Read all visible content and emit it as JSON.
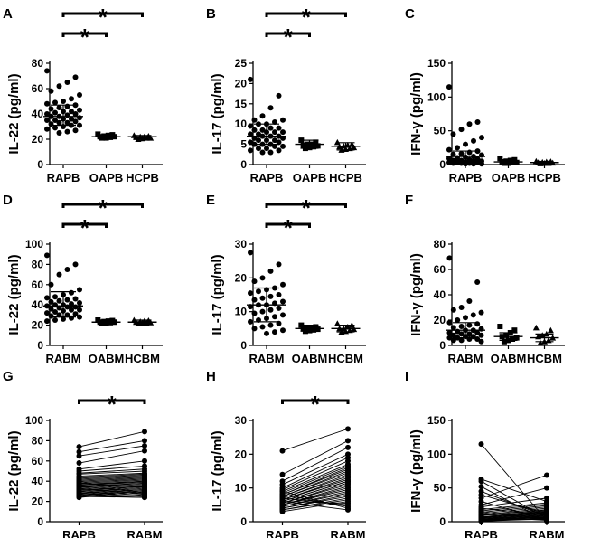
{
  "chart_data": [
    {
      "panel": "A",
      "type": "scatter",
      "ylabel": "IL-22 (pg/ml)",
      "ylim": [
        0,
        80
      ],
      "yticks": [
        0,
        20,
        40,
        60,
        80
      ],
      "categories": [
        "RAPB",
        "OAPB",
        "HCPB"
      ],
      "markers": [
        "circle",
        "square",
        "triangle"
      ],
      "means": [
        38,
        22,
        22
      ],
      "sd": [
        [
          31,
          47
        ],
        [
          21,
          23.5
        ],
        [
          20.5,
          23
        ]
      ],
      "points": [
        [
          74,
          69,
          65,
          62,
          58,
          55,
          52,
          50,
          49,
          48,
          47,
          46,
          45,
          44,
          43,
          42,
          42,
          41,
          40,
          40,
          39,
          38,
          38,
          37,
          36,
          36,
          35,
          35,
          34,
          33,
          33,
          32,
          31,
          31,
          30,
          29,
          28,
          27,
          26,
          25
        ],
        [
          24,
          23.5,
          23,
          22.5,
          22,
          22,
          21.5,
          21,
          21
        ],
        [
          23,
          22.5,
          22,
          22,
          21.5,
          21,
          21,
          20.5,
          20
        ]
      ],
      "sig": [
        {
          "from": 0,
          "to": 1,
          "label": "*"
        },
        {
          "from": 0,
          "to": 2,
          "label": "*"
        }
      ]
    },
    {
      "panel": "B",
      "type": "scatter",
      "ylabel": "IL-17 (pg/ml)",
      "ylim": [
        0,
        25
      ],
      "yticks": [
        0,
        5,
        10,
        15,
        20,
        25
      ],
      "categories": [
        "RAPB",
        "OAPB",
        "HCPB"
      ],
      "markers": [
        "circle",
        "square",
        "triangle"
      ],
      "means": [
        7,
        5,
        4.5
      ],
      "sd": [
        [
          5,
          10
        ],
        [
          4,
          6
        ],
        [
          3.6,
          5.4
        ]
      ],
      "points": [
        [
          21,
          17,
          14,
          12,
          11,
          11,
          10.5,
          10,
          10,
          9.5,
          9,
          9,
          8.5,
          8.5,
          8,
          8,
          8,
          7.5,
          7.5,
          7,
          7,
          7,
          6.5,
          6.5,
          6,
          6,
          6,
          5.5,
          5.5,
          5,
          5,
          5,
          4.5,
          4.5,
          4,
          4,
          3.5,
          3.5,
          3,
          3
        ],
        [
          6,
          5.5,
          5,
          5,
          4.8,
          4.6,
          4.4,
          4.2,
          4
        ],
        [
          5.5,
          5,
          4.8,
          4.6,
          4.4,
          4.2,
          4,
          3.8,
          3.6
        ]
      ],
      "sig": [
        {
          "from": 0,
          "to": 1,
          "label": "*"
        },
        {
          "from": 0,
          "to": 2,
          "label": "*"
        }
      ]
    },
    {
      "panel": "C",
      "type": "scatter",
      "ylabel": "IFN-γ (pg/ml)",
      "ylim": [
        0,
        150
      ],
      "yticks": [
        0,
        50,
        100,
        150
      ],
      "categories": [
        "RAPB",
        "OAPB",
        "HCPB"
      ],
      "markers": [
        "circle",
        "square",
        "triangle"
      ],
      "means": [
        12,
        4,
        3
      ],
      "sd": [
        [
          2,
          20
        ],
        [
          2,
          6
        ],
        [
          1.5,
          4.5
        ]
      ],
      "points": [
        [
          115,
          63,
          60,
          52,
          45,
          40,
          35,
          30,
          25,
          22,
          20,
          18,
          16,
          15,
          14,
          12,
          11,
          10,
          9,
          8,
          7,
          6,
          6,
          5,
          5,
          4,
          4,
          3,
          3,
          2,
          2,
          2,
          1,
          1,
          1
        ],
        [
          9,
          7,
          6,
          5,
          4,
          3,
          3,
          2,
          2
        ],
        [
          5,
          4.5,
          4,
          3.5,
          3,
          2.5,
          2,
          2,
          1.5
        ]
      ],
      "sig": []
    },
    {
      "panel": "D",
      "type": "scatter",
      "ylabel": "IL-22 (pg/ml)",
      "ylim": [
        0,
        100
      ],
      "yticks": [
        0,
        20,
        40,
        60,
        80,
        100
      ],
      "categories": [
        "RABM",
        "OABM",
        "HCBM"
      ],
      "markers": [
        "circle",
        "square",
        "triangle"
      ],
      "means": [
        39,
        23,
        23
      ],
      "sd": [
        [
          28,
          53
        ],
        [
          22,
          24.5
        ],
        [
          21.5,
          25
        ]
      ],
      "points": [
        [
          89,
          80,
          75,
          70,
          60,
          55,
          52,
          50,
          48,
          47,
          46,
          45,
          44,
          43,
          42,
          41,
          40,
          40,
          39,
          38,
          38,
          37,
          36,
          35,
          35,
          34,
          33,
          32,
          31,
          30,
          30,
          29,
          28,
          27,
          26,
          25,
          24
        ],
        [
          25,
          24.5,
          24,
          23.5,
          23,
          23,
          22.5,
          22,
          22
        ],
        [
          25,
          24.5,
          24,
          23.5,
          23,
          22.5,
          22,
          22,
          21.5
        ]
      ],
      "sig": [
        {
          "from": 0,
          "to": 1,
          "label": "*"
        },
        {
          "from": 0,
          "to": 2,
          "label": "*"
        }
      ]
    },
    {
      "panel": "E",
      "type": "scatter",
      "ylabel": "IL-17 (pg/ml)",
      "ylim": [
        0,
        30
      ],
      "yticks": [
        0,
        10,
        20,
        30
      ],
      "categories": [
        "RABM",
        "OABM",
        "HCBM"
      ],
      "markers": [
        "circle",
        "square",
        "triangle"
      ],
      "means": [
        12,
        5,
        5
      ],
      "sd": [
        [
          7,
          17
        ],
        [
          4.2,
          6
        ],
        [
          4,
          6
        ]
      ],
      "points": [
        [
          27.5,
          24,
          22,
          20,
          19,
          18,
          17,
          16.5,
          16,
          15.5,
          15,
          14.5,
          14,
          13.5,
          13,
          12.5,
          12,
          12,
          11.5,
          11,
          10.5,
          10,
          9.5,
          9,
          8.5,
          8,
          7.5,
          7,
          6.5,
          6,
          5.5,
          5,
          4.5,
          4,
          3.5
        ],
        [
          6,
          5.5,
          5.2,
          5,
          5,
          4.8,
          4.6,
          4.4,
          4.2
        ],
        [
          6.5,
          6,
          5.5,
          5,
          5,
          4.8,
          4.5,
          4.2,
          4
        ]
      ],
      "sig": [
        {
          "from": 0,
          "to": 1,
          "label": "*"
        },
        {
          "from": 0,
          "to": 2,
          "label": "*"
        }
      ]
    },
    {
      "panel": "F",
      "type": "scatter",
      "ylabel": "IFN-γ (pg/ml)",
      "ylim": [
        0,
        80
      ],
      "yticks": [
        0,
        20,
        40,
        60,
        80
      ],
      "categories": [
        "RABM",
        "OABM",
        "HCBM"
      ],
      "markers": [
        "circle",
        "square",
        "triangle"
      ],
      "means": [
        12,
        7,
        6
      ],
      "sd": [
        [
          6,
          18
        ],
        [
          4,
          10
        ],
        [
          3,
          9
        ]
      ],
      "points": [
        [
          69,
          50,
          35,
          30,
          28,
          26,
          24,
          22,
          20,
          18,
          17,
          16,
          15,
          14,
          13,
          12,
          12,
          11,
          10,
          10,
          9,
          9,
          8,
          8,
          7,
          7,
          6,
          6,
          5,
          5,
          4,
          4,
          3
        ],
        [
          15,
          12,
          10,
          8,
          7,
          6,
          5,
          4,
          3
        ],
        [
          14,
          12,
          9,
          8,
          7,
          6,
          4,
          3,
          2
        ]
      ],
      "sig": []
    },
    {
      "panel": "G",
      "type": "paired",
      "ylabel": "IL-22 (pg/ml)",
      "ylim": [
        0,
        100
      ],
      "yticks": [
        0,
        20,
        40,
        60,
        80,
        100
      ],
      "categories": [
        "RAPB",
        "RABM"
      ],
      "pairs": [
        [
          74,
          89
        ],
        [
          69,
          80
        ],
        [
          65,
          75
        ],
        [
          58,
          70
        ],
        [
          52,
          60
        ],
        [
          50,
          55
        ],
        [
          48,
          52
        ],
        [
          47,
          50
        ],
        [
          45,
          48
        ],
        [
          44,
          47
        ],
        [
          43,
          46
        ],
        [
          42,
          45
        ],
        [
          41,
          44
        ],
        [
          40,
          43
        ],
        [
          39,
          42
        ],
        [
          38,
          41
        ],
        [
          37,
          40
        ],
        [
          36,
          40
        ],
        [
          36,
          39
        ],
        [
          35,
          38
        ],
        [
          34,
          38
        ],
        [
          33,
          37
        ],
        [
          32,
          36
        ],
        [
          31,
          35
        ],
        [
          30,
          35
        ],
        [
          29,
          34
        ],
        [
          28,
          33
        ],
        [
          27,
          32
        ],
        [
          26,
          31
        ],
        [
          25,
          30
        ],
        [
          24,
          30
        ],
        [
          35,
          29
        ],
        [
          40,
          28
        ],
        [
          33,
          27
        ],
        [
          30,
          26
        ],
        [
          28,
          25
        ],
        [
          26,
          24
        ],
        [
          25,
          24
        ],
        [
          32,
          28
        ],
        [
          38,
          34
        ]
      ],
      "sig": [
        {
          "from": 0,
          "to": 1,
          "label": "*"
        }
      ]
    },
    {
      "panel": "H",
      "type": "paired",
      "ylabel": "IL-17 (pg/ml)",
      "ylim": [
        0,
        30
      ],
      "yticks": [
        0,
        10,
        20,
        30
      ],
      "categories": [
        "RAPB",
        "RABM"
      ],
      "pairs": [
        [
          21,
          27.5
        ],
        [
          14,
          24
        ],
        [
          12,
          22
        ],
        [
          11,
          20
        ],
        [
          10,
          19
        ],
        [
          9.5,
          18
        ],
        [
          9,
          17
        ],
        [
          8.5,
          16.5
        ],
        [
          8,
          16
        ],
        [
          8,
          15.5
        ],
        [
          7.5,
          15
        ],
        [
          7.5,
          14.5
        ],
        [
          7,
          14
        ],
        [
          7,
          13.5
        ],
        [
          6.5,
          13
        ],
        [
          6.5,
          12.5
        ],
        [
          6,
          12
        ],
        [
          6,
          12
        ],
        [
          5.5,
          11.5
        ],
        [
          5.5,
          11
        ],
        [
          5,
          10.5
        ],
        [
          5,
          10
        ],
        [
          5,
          9.5
        ],
        [
          4.5,
          9
        ],
        [
          4.5,
          8.5
        ],
        [
          4,
          8
        ],
        [
          4,
          7.5
        ],
        [
          3.5,
          7
        ],
        [
          3.5,
          6.5
        ],
        [
          3,
          6
        ],
        [
          6,
          5.5
        ],
        [
          7,
          5
        ],
        [
          8,
          4.5
        ],
        [
          9,
          4
        ],
        [
          6,
          3.5
        ]
      ],
      "sig": [
        {
          "from": 0,
          "to": 1,
          "label": "*"
        }
      ]
    },
    {
      "panel": "I",
      "type": "paired",
      "ylabel": "IFN-γ (pg/ml)",
      "ylim": [
        0,
        150
      ],
      "yticks": [
        0,
        50,
        100,
        150
      ],
      "categories": [
        "RAPB",
        "RABM"
      ],
      "pairs": [
        [
          115,
          2
        ],
        [
          63,
          30
        ],
        [
          60,
          5
        ],
        [
          52,
          1
        ],
        [
          45,
          8
        ],
        [
          40,
          12
        ],
        [
          35,
          69
        ],
        [
          30,
          3
        ],
        [
          25,
          50
        ],
        [
          22,
          35
        ],
        [
          20,
          10
        ],
        [
          18,
          28
        ],
        [
          16,
          26
        ],
        [
          15,
          4
        ],
        [
          14,
          24
        ],
        [
          12,
          22
        ],
        [
          11,
          6
        ],
        [
          10,
          20
        ],
        [
          9,
          18
        ],
        [
          8,
          2
        ],
        [
          7,
          17
        ],
        [
          6,
          16
        ],
        [
          6,
          15
        ],
        [
          5,
          14
        ],
        [
          5,
          13
        ],
        [
          4,
          12
        ],
        [
          4,
          3
        ],
        [
          3,
          11
        ],
        [
          3,
          10
        ],
        [
          2,
          9
        ],
        [
          2,
          8
        ],
        [
          2,
          7
        ],
        [
          1,
          6
        ],
        [
          1,
          5
        ],
        [
          1,
          4
        ]
      ],
      "sig": []
    }
  ]
}
